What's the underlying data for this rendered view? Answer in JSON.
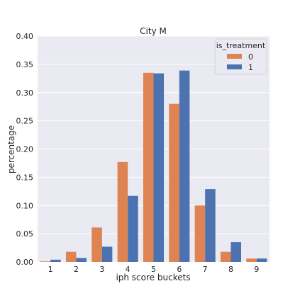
{
  "chart_data": {
    "type": "bar",
    "title": "City M",
    "xlabel": "iph score buckets",
    "ylabel": "percentage",
    "categories": [
      "1",
      "2",
      "3",
      "4",
      "5",
      "6",
      "7",
      "8",
      "9"
    ],
    "ylim": [
      0,
      0.4
    ],
    "yticks": [
      "0.00",
      "0.05",
      "0.10",
      "0.15",
      "0.20",
      "0.25",
      "0.30",
      "0.35",
      "0.40"
    ],
    "grid": true,
    "legend": {
      "title": "is_treatment",
      "position": "top-right"
    },
    "series": [
      {
        "name": "0",
        "color": "#dd8452",
        "values": [
          0.001,
          0.018,
          0.061,
          0.177,
          0.335,
          0.28,
          0.1,
          0.018,
          0.006
        ]
      },
      {
        "name": "1",
        "color": "#4c72b0",
        "values": [
          0.004,
          0.007,
          0.027,
          0.117,
          0.334,
          0.339,
          0.129,
          0.035,
          0.006
        ]
      }
    ],
    "background": "#eaeaf2",
    "gridColor": "#ffffff"
  }
}
